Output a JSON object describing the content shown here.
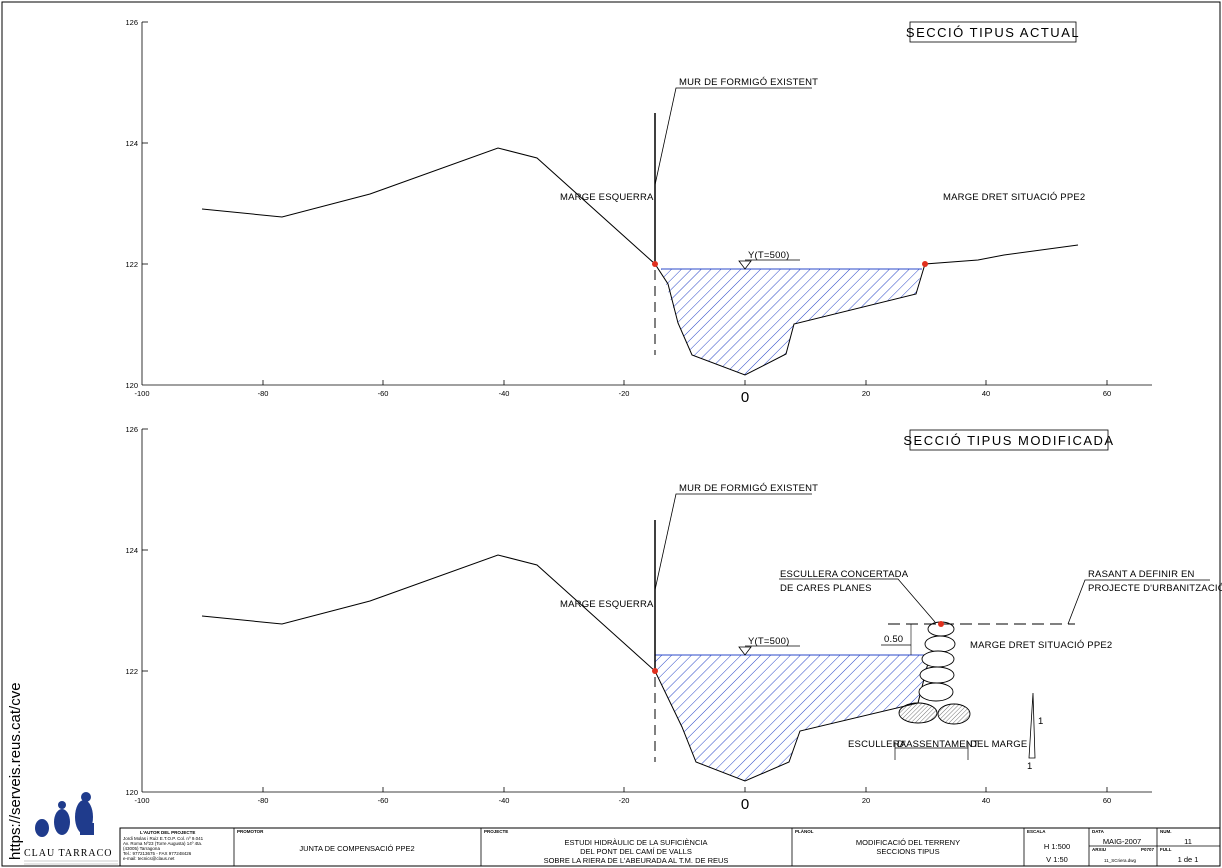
{
  "sections": [
    {
      "title": "SECCIÓ TIPUS ACTUAL",
      "y_ticks": [
        "126",
        "124",
        "122",
        "120"
      ],
      "x_ticks": [
        "-100",
        "-80",
        "-60",
        "-40",
        "-20",
        "20",
        "40",
        "60"
      ],
      "x_zero": "0",
      "labels": {
        "mur": "MUR DE FORMIGÓ EXISTENT",
        "left_bank": "MARGE ESQUERRA",
        "right_bank": "MARGE DRET SITUACIÓ PPE2",
        "water": "Y(T=500)"
      }
    },
    {
      "title": "SECCIÓ TIPUS MODIFICADA",
      "y_ticks": [
        "126",
        "124",
        "122",
        "120"
      ],
      "x_ticks": [
        "-100",
        "-80",
        "-60",
        "-40",
        "-20",
        "20",
        "40",
        "60"
      ],
      "x_zero": "0",
      "labels": {
        "mur": "MUR DE FORMIGÓ EXISTENT",
        "left_bank": "MARGE ESQUERRA",
        "right_bank": "MARGE DRET SITUACIÓ PPE2",
        "water": "Y(T=500)",
        "riprap_1": "ESCULLERA CONCERTADA",
        "riprap_2": "DE CARES PLANES",
        "rasant_1": "RASANT A DEFINIR EN",
        "rasant_2": "PROJECTE D'URBANITZACIÓ",
        "dim": "0.50",
        "base_1": "ESCULLERA",
        "base_2": "D'ASSENTAMENT",
        "base_3": "DEL MARGE",
        "slope_v": "1",
        "slope_h": "1"
      }
    }
  ],
  "side_url": "https://serveis.reus.cat/cve",
  "logo_text": "CLAU TARRACO",
  "title_block": {
    "author_head": "L'AUTOR DEL PROJECTE",
    "author_lines": [
      "Jordi Molas i Ruiz  E.T.O.P.  Col. nº 9.041",
      "Av. Roma Nº23 (Torre Augusta) 14º 4ta.",
      "(43005) Tarragona",
      "Tel.: 977213675 - FAX 977248426",
      "e-mail: tecnics@claus.net"
    ],
    "promotor_head": "PROMOTOR",
    "promotor": "JUNTA DE COMPENSACIÓ PPE2",
    "projecte_head": "PROJECTE",
    "projecte_lines": [
      "ESTUDI HIDRÀULIC DE LA SUFICIÈNCIA",
      "DEL PONT DEL CAMÍ DE VALLS",
      "SOBRE LA RIERA DE L'ABEURADA AL T.M. DE REUS"
    ],
    "planol_head": "PLÀNOL",
    "planol_lines": [
      "MODIFICACIÓ DEL TERRENY",
      "SECCIONS TIPUS"
    ],
    "escala_head": "ESCALA",
    "escala_h": "H 1:500",
    "escala_v": "V 1:50",
    "data_head": "DATA",
    "data": "MAIG-2007",
    "arxiu_head": "ARXIU",
    "arxiu_code": "P0707",
    "arxiu": "11_SCriera.dwg",
    "num_head": "NUM.",
    "num": "11",
    "full_head": "FULL",
    "full": "1 de 1"
  }
}
